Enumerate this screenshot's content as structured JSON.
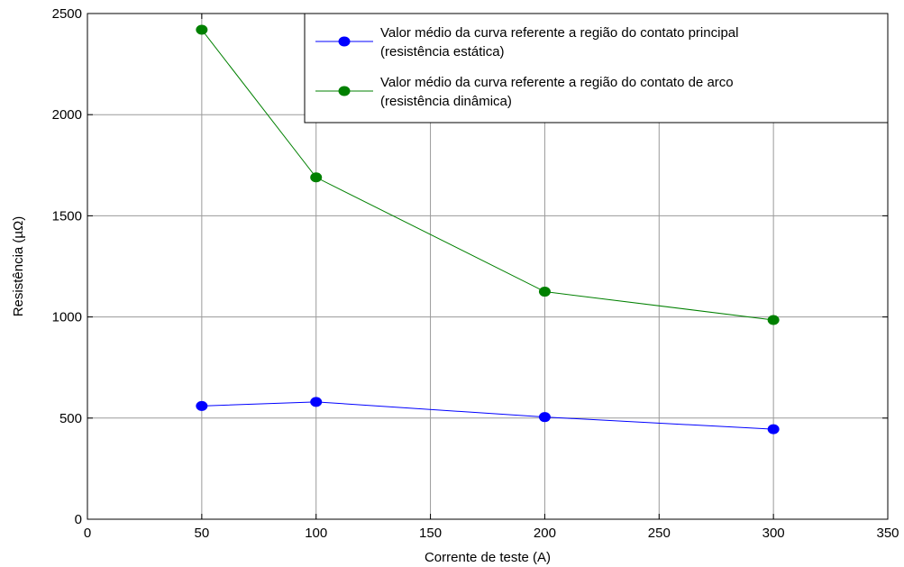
{
  "chart_data": {
    "type": "line",
    "xlabel": "Corrente de teste (A)",
    "ylabel": "Resistência (µΩ)",
    "xlim": [
      0,
      350
    ],
    "ylim": [
      0,
      2500
    ],
    "xticks": [
      0,
      50,
      100,
      150,
      200,
      250,
      300,
      350
    ],
    "yticks": [
      0,
      500,
      1000,
      1500,
      2000,
      2500
    ],
    "grid": true,
    "legend_position": "top-right",
    "series": [
      {
        "name_lines": [
          "Valor médio da curva referente a região do contato principal",
          "(resistência estática)"
        ],
        "color": "#0000ff",
        "x": [
          50,
          100,
          200,
          300
        ],
        "y": [
          560,
          580,
          505,
          445
        ]
      },
      {
        "name_lines": [
          "Valor médio da curva referente a região do contato de arco",
          "(resistência dinâmica)"
        ],
        "color": "#008000",
        "x": [
          50,
          100,
          200,
          300
        ],
        "y": [
          2420,
          1690,
          1125,
          985
        ]
      }
    ]
  }
}
